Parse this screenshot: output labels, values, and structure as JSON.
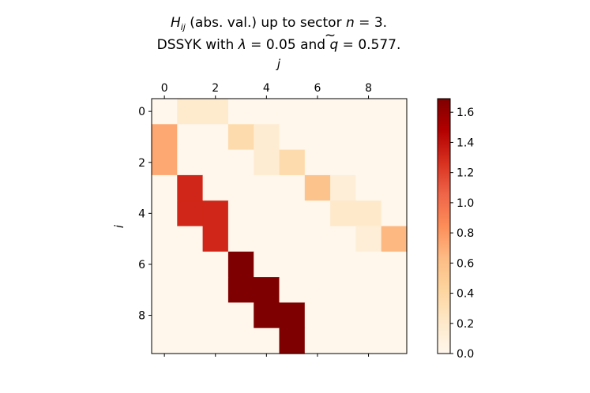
{
  "chart_data": {
    "type": "heatmap",
    "title": {
      "line1": {
        "math_symbol": "H",
        "math_sub": "ij",
        "text": " (abs. val.) up to sector ",
        "n_var": "n",
        "n_eq": " = 3."
      },
      "line2": {
        "prefix": "DSSYK with ",
        "lambda_sym": "λ",
        "lambda_eq": " = 0.05 and ",
        "q_sym": "q",
        "q_accent": "~",
        "q_eq": " = 0.577."
      }
    },
    "xlabel": "j",
    "ylabel": "i",
    "x_ticks": [
      "0",
      "2",
      "4",
      "6",
      "8"
    ],
    "y_ticks": [
      "0",
      "2",
      "4",
      "6",
      "8"
    ],
    "colorbar_ticks": [
      "0.0",
      "0.2",
      "0.4",
      "0.6",
      "0.8",
      "1.0",
      "1.2",
      "1.4",
      "1.6"
    ],
    "vmin": 0,
    "vmax": 1.69,
    "colormap": "OrRd",
    "matrix": [
      [
        0,
        0.19,
        0.19,
        0,
        0,
        0,
        0,
        0,
        0,
        0
      ],
      [
        0.72,
        0,
        0,
        0.35,
        0.15,
        0,
        0,
        0,
        0,
        0
      ],
      [
        0.72,
        0,
        0,
        0,
        0.15,
        0.35,
        0,
        0,
        0,
        0
      ],
      [
        0,
        1.31,
        0,
        0,
        0,
        0,
        0.57,
        0.12,
        0,
        0
      ],
      [
        0,
        1.31,
        1.31,
        0,
        0,
        0,
        0,
        0.2,
        0.2,
        0
      ],
      [
        0,
        0,
        1.31,
        0,
        0,
        0,
        0,
        0,
        0.12,
        0.65
      ],
      [
        0,
        0,
        0,
        1.69,
        0,
        0,
        0,
        0,
        0,
        0
      ],
      [
        0,
        0,
        0,
        1.69,
        1.69,
        0,
        0,
        0,
        0,
        0
      ],
      [
        0,
        0,
        0,
        0,
        1.69,
        1.69,
        0,
        0,
        0,
        0
      ],
      [
        0,
        0,
        0,
        0,
        0,
        1.69,
        0,
        0,
        0,
        0
      ]
    ]
  }
}
